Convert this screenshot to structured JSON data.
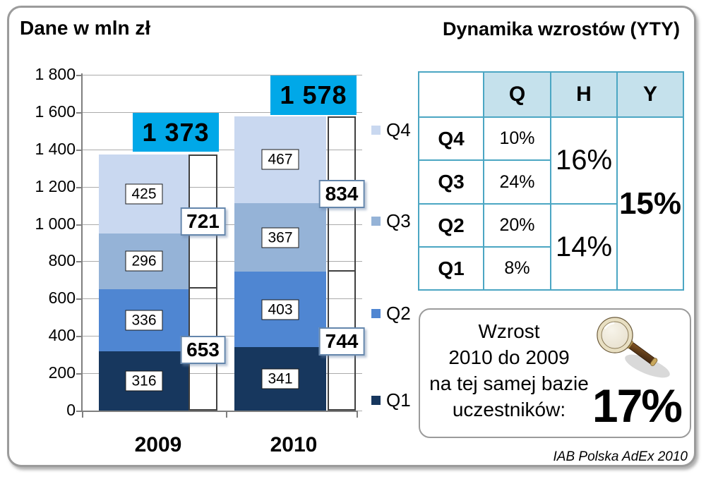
{
  "header": {
    "left_title": "Dane w mln zł",
    "right_title": "Dynamika wzrostów (YTY)"
  },
  "chart_data": {
    "type": "bar",
    "stacked": true,
    "categories": [
      "2009",
      "2010"
    ],
    "series": [
      {
        "name": "Q1",
        "color": "#17375E",
        "values": [
          316,
          341
        ]
      },
      {
        "name": "Q2",
        "color": "#4F86D2",
        "values": [
          336,
          403
        ]
      },
      {
        "name": "Q3",
        "color": "#95B3D7",
        "values": [
          296,
          367
        ]
      },
      {
        "name": "Q4",
        "color": "#C9D8F0",
        "values": [
          425,
          467
        ]
      }
    ],
    "totals": [
      1373,
      1578
    ],
    "total_labels": [
      "1 373",
      "1 578"
    ],
    "total_box_color": "#00A8E8",
    "half_totals": [
      [
        653,
        721
      ],
      [
        744,
        834
      ]
    ],
    "half_total_labels": [
      [
        "653",
        "721"
      ],
      [
        "744",
        "834"
      ]
    ],
    "ylim": [
      0,
      1800
    ],
    "ytick_step": 200,
    "ytick_labels": [
      "0",
      "200",
      "400",
      "600",
      "800",
      "1 000",
      "1 200",
      "1 400",
      "1 600",
      "1 800"
    ],
    "legend": [
      {
        "label": "Q4",
        "color": "#C9D8F0"
      },
      {
        "label": "Q3",
        "color": "#95B3D7"
      },
      {
        "label": "Q2",
        "color": "#4F86D2"
      },
      {
        "label": "Q1",
        "color": "#17375E"
      }
    ],
    "grid": true,
    "legend_position": "right"
  },
  "table": {
    "col_headers": [
      "Q",
      "H",
      "Y"
    ],
    "rows": [
      {
        "label": "Q4",
        "q": "10%"
      },
      {
        "label": "Q3",
        "q": "24%"
      },
      {
        "label": "Q2",
        "q": "20%"
      },
      {
        "label": "Q1",
        "q": "8%"
      }
    ],
    "h_groups": [
      {
        "value": "16%"
      },
      {
        "value": "14%"
      }
    ],
    "y_total": "15%",
    "header_bg": "#C5E1EC",
    "border_color": "#4BA6C3"
  },
  "growth_box": {
    "lines": [
      "Wzrost",
      "2010 do 2009",
      "na tej samej bazie",
      "uczestników:"
    ],
    "value": "17%"
  },
  "footer": {
    "credit": "IAB Polska AdEx 2010"
  }
}
